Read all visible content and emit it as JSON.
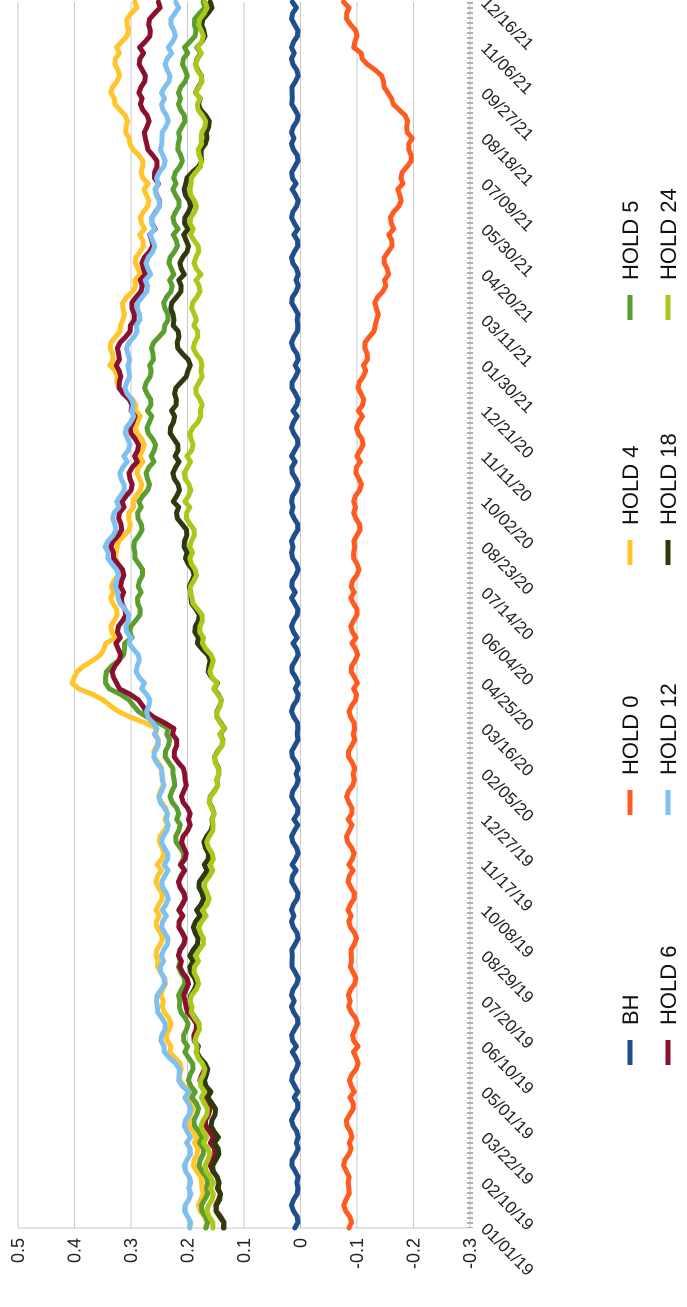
{
  "chart_data": {
    "type": "line",
    "title": "",
    "xlabel": "",
    "ylabel": "",
    "ylim": [
      -0.3,
      0.5
    ],
    "y_ticks": [
      "0.5",
      "0.4",
      "0.3",
      "0.2",
      "0.1",
      "0",
      "-0.1",
      "-0.2",
      "-0.3"
    ],
    "y_tick_values": [
      0.5,
      0.4,
      0.3,
      0.2,
      0.1,
      0,
      -0.1,
      -0.2,
      -0.3
    ],
    "x_ticks": [
      "01/01/19",
      "02/10/19",
      "03/22/19",
      "05/01/19",
      "06/10/19",
      "07/20/19",
      "08/29/19",
      "10/08/19",
      "11/17/19",
      "12/27/19",
      "02/05/20",
      "03/16/20",
      "04/25/20",
      "06/04/20",
      "07/14/20",
      "08/23/20",
      "10/02/20",
      "11/11/20",
      "12/21/20",
      "01/30/21",
      "03/11/21",
      "04/20/21",
      "05/30/21",
      "07/09/21",
      "08/18/21",
      "09/27/21",
      "11/06/21",
      "12/16/21"
    ],
    "grid": true,
    "legend_position": "bottom",
    "series": [
      {
        "name": "BH",
        "color": "#1f4e8c",
        "values": [
          0.01,
          0.01,
          0.01,
          0.01,
          0.01,
          0.01,
          0.01,
          0.01,
          0.01,
          0.01,
          0.01,
          0.01,
          0.01,
          0.01,
          0.01,
          0.01,
          0.01,
          0.01,
          0.01,
          0.01,
          0.01,
          0.01,
          0.01,
          0.01,
          0.01,
          0.01,
          0.01,
          0.01
        ]
      },
      {
        "name": "HOLD 0",
        "color": "#ff5a1f",
        "values": [
          -0.085,
          -0.08,
          -0.085,
          -0.09,
          -0.1,
          -0.09,
          -0.095,
          -0.09,
          -0.09,
          -0.085,
          -0.09,
          -0.09,
          -0.095,
          -0.095,
          -0.095,
          -0.1,
          -0.1,
          -0.105,
          -0.105,
          -0.11,
          -0.13,
          -0.15,
          -0.16,
          -0.18,
          -0.2,
          -0.16,
          -0.1,
          -0.08
        ]
      },
      {
        "name": "HOLD 4",
        "color": "#ffc52a",
        "values": [
          0.17,
          0.18,
          0.19,
          0.2,
          0.23,
          0.24,
          0.25,
          0.25,
          0.25,
          0.24,
          0.25,
          0.26,
          0.41,
          0.33,
          0.33,
          0.32,
          0.29,
          0.28,
          0.29,
          0.34,
          0.32,
          0.29,
          0.28,
          0.27,
          0.3,
          0.33,
          0.32,
          0.29
        ]
      },
      {
        "name": "HOLD 5",
        "color": "#5a9e2f",
        "values": [
          0.17,
          0.17,
          0.18,
          0.19,
          0.2,
          0.21,
          0.21,
          0.21,
          0.21,
          0.22,
          0.23,
          0.24,
          0.35,
          0.3,
          0.28,
          0.29,
          0.28,
          0.26,
          0.27,
          0.27,
          0.24,
          0.23,
          0.22,
          0.22,
          0.21,
          0.21,
          0.2,
          0.17
        ]
      },
      {
        "name": "HOLD 6",
        "color": "#8a1030",
        "values": [
          0.14,
          0.15,
          0.16,
          0.17,
          0.18,
          0.2,
          0.21,
          0.21,
          0.21,
          0.2,
          0.21,
          0.23,
          0.33,
          0.32,
          0.31,
          0.33,
          0.31,
          0.29,
          0.3,
          0.33,
          0.3,
          0.28,
          0.26,
          0.25,
          0.27,
          0.28,
          0.28,
          0.25
        ]
      },
      {
        "name": "HOLD 12",
        "color": "#7fc0f0",
        "values": [
          0.2,
          0.2,
          0.2,
          0.2,
          0.24,
          0.25,
          0.24,
          0.24,
          0.24,
          0.24,
          0.25,
          0.26,
          0.28,
          0.3,
          0.32,
          0.34,
          0.32,
          0.31,
          0.3,
          0.31,
          0.29,
          0.27,
          0.26,
          0.25,
          0.24,
          0.24,
          0.23,
          0.22
        ]
      },
      {
        "name": "HOLD 18",
        "color": "#2e3a0e",
        "values": [
          0.14,
          0.15,
          0.15,
          0.16,
          0.18,
          0.19,
          0.19,
          0.18,
          0.17,
          0.16,
          0.15,
          0.14,
          0.15,
          0.18,
          0.19,
          0.2,
          0.22,
          0.22,
          0.23,
          0.2,
          0.23,
          0.21,
          0.2,
          0.2,
          0.16,
          0.18,
          0.18,
          0.16
        ]
      },
      {
        "name": "HOLD 24",
        "color": "#a8c81a",
        "values": [
          0.16,
          0.16,
          0.17,
          0.17,
          0.18,
          0.19,
          0.18,
          0.17,
          0.16,
          0.16,
          0.15,
          0.14,
          0.15,
          0.17,
          0.19,
          0.19,
          0.2,
          0.2,
          0.18,
          0.18,
          0.19,
          0.18,
          0.19,
          0.19,
          0.17,
          0.18,
          0.18,
          0.17
        ]
      }
    ]
  }
}
